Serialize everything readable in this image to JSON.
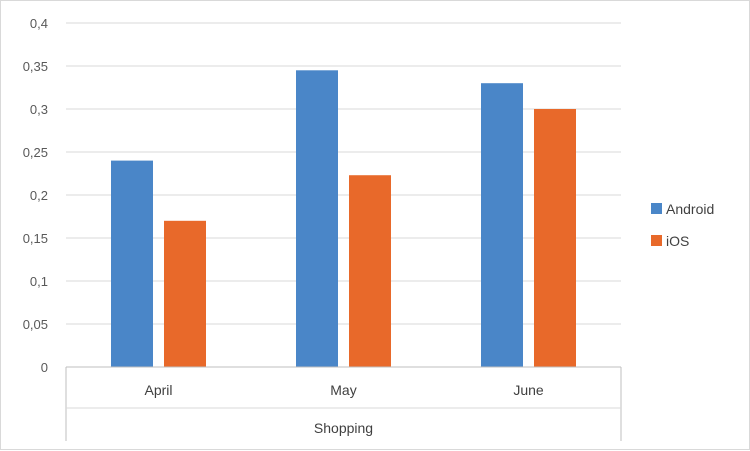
{
  "chart_data": {
    "type": "bar",
    "categories": [
      "April",
      "May",
      "June"
    ],
    "group_label": "Shopping",
    "series": [
      {
        "name": "Android",
        "values": [
          0.24,
          0.345,
          0.33
        ],
        "color": "#4a86c8"
      },
      {
        "name": "iOS",
        "values": [
          0.17,
          0.223,
          0.3
        ],
        "color": "#e8692a"
      }
    ],
    "ylim": [
      0,
      0.4
    ],
    "yticks": [
      "0",
      "0,05",
      "0,1",
      "0,15",
      "0,2",
      "0,25",
      "0,3",
      "0,35",
      "0,4"
    ],
    "grid": true,
    "legend_position": "right"
  }
}
